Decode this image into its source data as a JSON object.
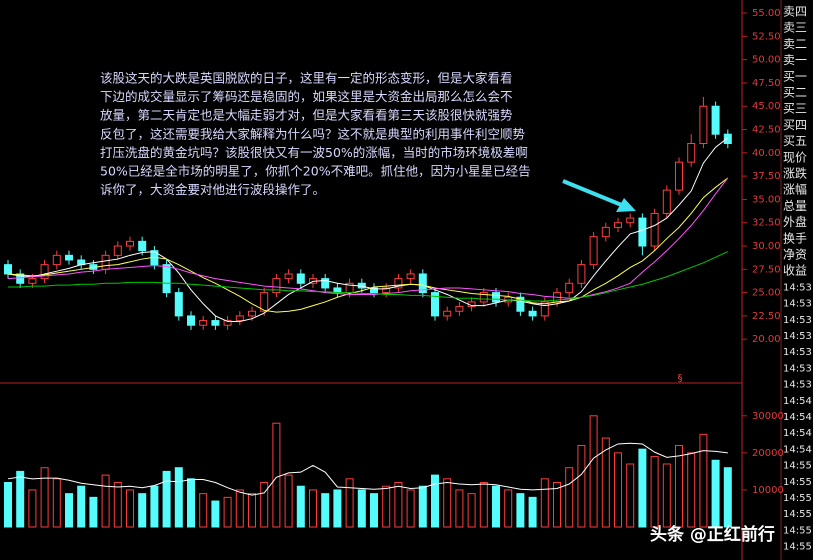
{
  "chart_data": [
    {
      "type": "candlestick",
      "open": [
        28,
        27,
        26,
        26.5,
        28,
        29,
        28.5,
        28,
        27.5,
        29,
        30,
        30.5,
        29.5,
        28,
        25,
        22.5,
        21.5,
        22,
        21.5,
        22,
        22.5,
        23,
        25,
        26.5,
        27,
        26,
        26.5,
        25.5,
        25,
        26,
        25.5,
        25,
        25.5,
        26.5,
        27,
        25,
        22.5,
        23,
        23.5,
        24,
        25,
        24,
        24.5,
        23,
        22.5,
        24,
        25,
        26,
        28,
        31,
        32,
        32.5,
        33,
        30,
        33.5,
        36,
        39,
        41,
        45,
        42
      ],
      "high": [
        28.5,
        27.5,
        27,
        28.5,
        29.5,
        29.5,
        29,
        28.5,
        29.5,
        30.5,
        31,
        31,
        30,
        28.5,
        25.5,
        23,
        22.5,
        22.5,
        22.5,
        23,
        23.5,
        25.5,
        27,
        27.5,
        27.5,
        27,
        27,
        26,
        26.5,
        26.5,
        26,
        26,
        27,
        27.5,
        27.5,
        25.5,
        23.5,
        24,
        24.5,
        25.5,
        25.5,
        25,
        25,
        23.5,
        24.5,
        25.5,
        26.5,
        28.5,
        31.5,
        32.5,
        33,
        33.5,
        33.5,
        34,
        36.5,
        39.5,
        42,
        46,
        45.5,
        42.5
      ],
      "low": [
        26.5,
        25.5,
        25.5,
        26,
        27.5,
        28,
        27.5,
        27,
        27,
        28.5,
        29.5,
        29,
        27.5,
        24.5,
        22,
        21,
        21,
        21,
        21,
        21.5,
        22,
        22.5,
        24.5,
        26,
        25.5,
        25.5,
        25,
        24.5,
        24.5,
        25,
        24.5,
        24.5,
        25,
        26,
        24.5,
        22,
        22,
        22.5,
        23,
        23.5,
        23.5,
        23.5,
        22.5,
        22,
        22,
        23.5,
        24.5,
        25.5,
        27.5,
        30.5,
        31.5,
        32,
        29,
        29.5,
        33,
        35.5,
        38.5,
        40.5,
        41.5,
        40.5
      ],
      "close": [
        27,
        26,
        26.5,
        28,
        29,
        28.5,
        28,
        27.5,
        29,
        30,
        30.5,
        29.5,
        28,
        25,
        22.5,
        21.5,
        22,
        21.5,
        22,
        22.5,
        23,
        25,
        26.5,
        27,
        26,
        26.5,
        25.5,
        25,
        26,
        25.5,
        25,
        25.5,
        26.5,
        27,
        25,
        22.5,
        23,
        23.5,
        24,
        25,
        24,
        24.5,
        23,
        22.5,
        24,
        25,
        26,
        28,
        31,
        32,
        32.5,
        33,
        30,
        33.5,
        36,
        39,
        41,
        45,
        42,
        41
      ],
      "up_color": "#ff3c3c",
      "down_color": "#54fcfc",
      "series": [
        {
          "name": "MA5",
          "color": "#ffffff",
          "values": [
            27,
            26.8,
            26.7,
            27,
            27.3,
            27.6,
            28,
            28.2,
            28.4,
            28.6,
            29,
            29.3,
            29.4,
            28.6,
            27.1,
            25.3,
            23.8,
            22.5,
            21.9,
            21.9,
            22.2,
            22.8,
            23.8,
            24.8,
            25.5,
            26.2,
            26.3,
            26,
            25.8,
            25.7,
            25.4,
            25.4,
            25.7,
            25.9,
            25.8,
            25.3,
            24.8,
            24.2,
            23.6,
            23.6,
            23.9,
            24.2,
            24.1,
            23.8,
            23.6,
            23.8,
            24.1,
            25.1,
            26.8,
            28.4,
            29.9,
            31.3,
            31.7,
            32.2,
            33,
            34.4,
            35.9,
            38.9,
            40.6,
            41.6
          ]
        },
        {
          "name": "MA10",
          "color": "#ffff54",
          "values": [
            27,
            26.9,
            26.8,
            26.9,
            27.1,
            27.3,
            27.5,
            27.7,
            27.9,
            28,
            28.3,
            28.6,
            28.8,
            28.6,
            28,
            27.3,
            26.6,
            26,
            25.3,
            24.6,
            23.8,
            23.1,
            22.9,
            23,
            23.2,
            23.6,
            24,
            24.5,
            24.9,
            25.2,
            25.6,
            25.7,
            25.8,
            25.9,
            25.8,
            25.5,
            25.3,
            25.1,
            24.9,
            24.8,
            24.7,
            24.6,
            24.3,
            23.9,
            23.8,
            24,
            24.1,
            24.5,
            25.3,
            26,
            26.8,
            27.7,
            28.4,
            29.5,
            30.8,
            32,
            33.5,
            35.2,
            36.3,
            37.3
          ]
        },
        {
          "name": "MA20",
          "color": "#ff54ff",
          "values": [
            26.5,
            26.6,
            26.7,
            26.8,
            26.9,
            27,
            27.2,
            27.3,
            27.5,
            27.6,
            27.7,
            27.8,
            27.9,
            27.8,
            27.5,
            27.1,
            26.8,
            26.5,
            26.3,
            26.1,
            25.9,
            25.7,
            25.6,
            25.5,
            25.4,
            25.2,
            25,
            24.9,
            24.8,
            24.8,
            24.8,
            24.9,
            25,
            25.2,
            25.3,
            25.4,
            25.5,
            25.5,
            25.4,
            25.3,
            25.2,
            25.1,
            24.9,
            24.8,
            24.6,
            24.5,
            24.4,
            24.5,
            24.8,
            25.1,
            25.5,
            26,
            27.2,
            28.3,
            29.5,
            30.8,
            32.2,
            33.8,
            35.6,
            37.3
          ]
        },
        {
          "name": "MA60",
          "color": "#00c800",
          "values": [
            25.6,
            25.6,
            25.7,
            25.7,
            25.8,
            25.8,
            25.9,
            25.9,
            26,
            26,
            26.1,
            26.1,
            26.1,
            26,
            26,
            25.9,
            25.8,
            25.7,
            25.6,
            25.5,
            25.4,
            25.3,
            25.3,
            25.2,
            25.2,
            25.1,
            25.1,
            25,
            25,
            24.9,
            24.9,
            24.8,
            24.8,
            24.7,
            24.7,
            24.6,
            24.5,
            24.4,
            24.4,
            24.3,
            24.3,
            24.2,
            24.2,
            24.1,
            24.1,
            24.2,
            24.3,
            24.5,
            24.7,
            25,
            25.3,
            25.6,
            25.9,
            26.3,
            26.7,
            27.2,
            27.7,
            28.2,
            28.8,
            29.4
          ]
        }
      ],
      "ylim": [
        15.3,
        56.4
      ],
      "yticks": [
        {
          "value": 20,
          "label": "20.00"
        },
        {
          "value": 22.5,
          "label": "22.50"
        },
        {
          "value": 25,
          "label": "25.00"
        },
        {
          "value": 27.5,
          "label": "27.50"
        },
        {
          "value": 30,
          "label": "30.00"
        },
        {
          "value": 32.5,
          "label": "32.50"
        },
        {
          "value": 35,
          "label": "35.00"
        },
        {
          "value": 37.5,
          "label": "37.50"
        },
        {
          "value": 40,
          "label": "40.00"
        },
        {
          "value": 42.5,
          "label": "42.50"
        },
        {
          "value": 45,
          "label": "45.00"
        },
        {
          "value": 47.5,
          "label": "47.50"
        },
        {
          "value": 50,
          "label": "50.00"
        },
        {
          "value": 52.5,
          "label": "52.50"
        },
        {
          "value": 55,
          "label": "55.00"
        }
      ],
      "event_marker": "§"
    },
    {
      "type": "bar",
      "values": [
        12000,
        15000,
        10000,
        16000,
        13000,
        9000,
        11000,
        8000,
        14000,
        12000,
        10000,
        9000,
        11000,
        15000,
        16000,
        13000,
        9000,
        7000,
        8000,
        10000,
        9000,
        12000,
        28000,
        14000,
        11000,
        10000,
        9000,
        10000,
        13000,
        10000,
        9000,
        11000,
        12000,
        10000,
        11000,
        14000,
        13000,
        10000,
        9000,
        12000,
        11000,
        10000,
        9000,
        8000,
        13000,
        12000,
        16000,
        22000,
        30000,
        24000,
        20000,
        17000,
        21000,
        19000,
        17000,
        22000,
        20000,
        25000,
        18000,
        16000
      ],
      "series": [
        {
          "name": "MAVOL5",
          "color": "#ffffff",
          "values": [
            13000,
            13500,
            13000,
            13200,
            13200,
            12600,
            11800,
            11400,
            11000,
            10800,
            11000,
            10600,
            11200,
            12400,
            12200,
            12800,
            12800,
            12000,
            10600,
            9400,
            8600,
            9200,
            13400,
            14600,
            14800,
            16600,
            14800,
            10800,
            10600,
            10400,
            10200,
            10400,
            11000,
            10400,
            10600,
            11600,
            12000,
            11600,
            11400,
            11600,
            11400,
            10800,
            10200,
            10000,
            10200,
            10400,
            11600,
            14200,
            18600,
            20800,
            22400,
            22600,
            22400,
            20200,
            18800,
            19200,
            19800,
            20600,
            20400,
            20000
          ]
        }
      ],
      "ylim": [
        0,
        37500
      ],
      "yticks": [
        10000,
        20000,
        30000
      ]
    }
  ],
  "annotation": [
    "该股这天的大跌是英国脱欧的日子，这里有一定的形态变形，但是大家看看",
    "下边的成交量显示了筹码还是稳固的，如果这里是大资金出局那么怎么会不",
    "放量，第二天肯定也是大幅走弱才对，但是大家看看第三天该股很快就强势",
    "反包了，这还需要我给大家解释为什么吗？这不就是典型的利用事件利空顺势",
    "打压洗盘的黄金坑吗？该股很快又有一波50%的涨幅，当时的市场环境极差啊",
    "50%已经是全市场的明星了，你抓个20%不难吧。抓住他，因为小星星已经告",
    "诉你了，大资金要对他进行波段操作了。"
  ],
  "side_panel": {
    "labels": [
      "卖四",
      "卖三",
      "卖二",
      "卖一",
      "买一",
      "买二",
      "买三",
      "买四",
      "买五",
      "现价",
      "涨跌",
      "涨幅",
      "总量",
      "外盘",
      "换手",
      "净资",
      "收益"
    ],
    "times": [
      "14:53",
      "14:53",
      "14:53",
      "14:53",
      "14:53",
      "14:53",
      "14:53",
      "14:54",
      "14:54",
      "14:54",
      "14:54",
      "14:55",
      "14:55",
      "14:55",
      "14:55",
      "14:55",
      "14:55"
    ]
  },
  "watermark": "头条 @正红前行"
}
